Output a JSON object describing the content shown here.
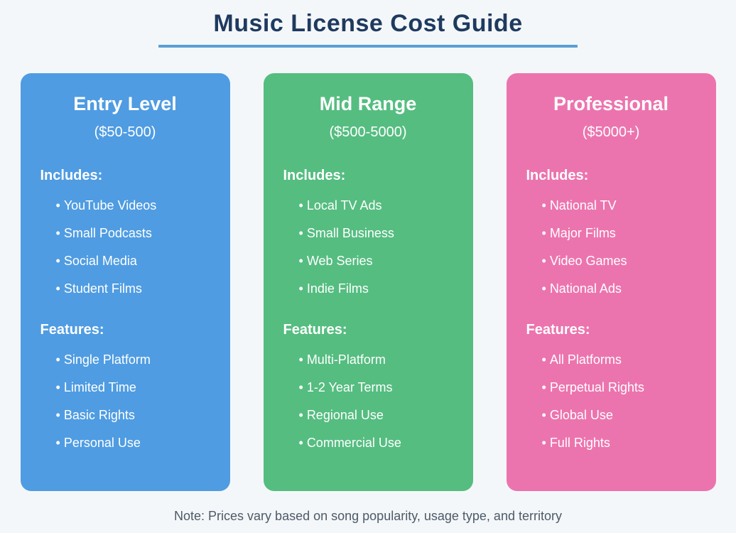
{
  "page": {
    "title": "Music License Cost Guide",
    "note": "Note: Prices vary based on song popularity, usage type, and territory"
  },
  "colors": {
    "background": "#f4f7f9",
    "title_text": "#1e3a5f",
    "underline": "#5b9fd4",
    "note_text": "#4d5a68",
    "card_entry": "#4f9ce2",
    "card_mid": "#55bd80",
    "card_pro": "#ec74ae"
  },
  "cards": [
    {
      "title": "Entry Level",
      "price_range": "($50-500)",
      "color": "#4f9ce2",
      "includes_label": "Includes:",
      "includes": [
        "YouTube Videos",
        "Small Podcasts",
        "Social Media",
        "Student Films"
      ],
      "features_label": "Features:",
      "features": [
        "Single Platform",
        "Limited Time",
        "Basic Rights",
        "Personal Use"
      ]
    },
    {
      "title": "Mid Range",
      "price_range": "($500-5000)",
      "color": "#55bd80",
      "includes_label": "Includes:",
      "includes": [
        "Local TV Ads",
        "Small Business",
        "Web Series",
        "Indie Films"
      ],
      "features_label": "Features:",
      "features": [
        "Multi-Platform",
        "1-2 Year Terms",
        "Regional Use",
        "Commercial Use"
      ]
    },
    {
      "title": "Professional",
      "price_range": "($5000+)",
      "color": "#ec74ae",
      "includes_label": "Includes:",
      "includes": [
        "National TV",
        "Major Films",
        "Video Games",
        "National Ads"
      ],
      "features_label": "Features:",
      "features": [
        "All Platforms",
        "Perpetual Rights",
        "Global Use",
        "Full Rights"
      ]
    }
  ]
}
